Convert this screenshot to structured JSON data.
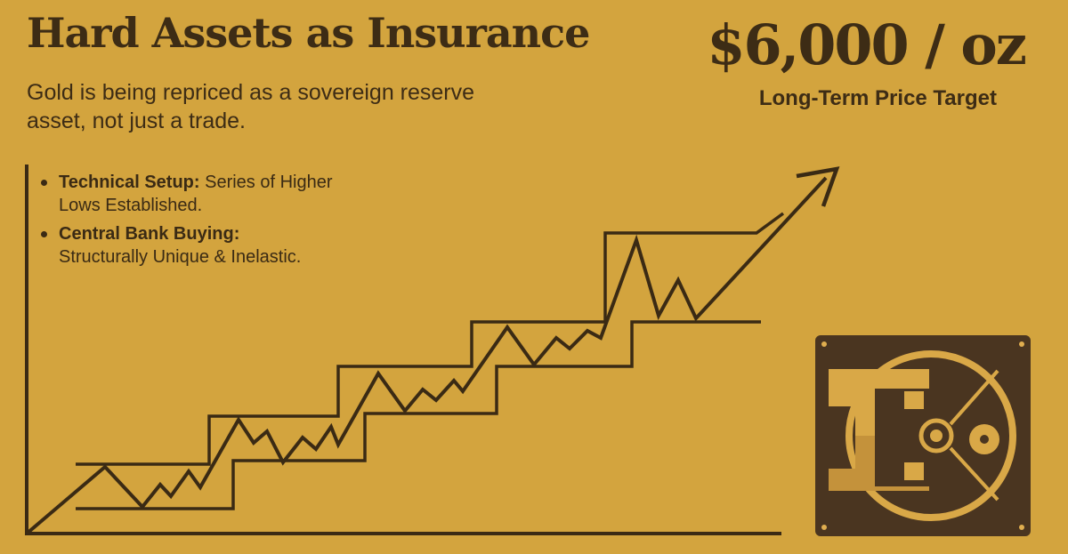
{
  "header": {
    "title": "Hard Assets as Insurance",
    "subtitle": "Gold is being repriced as a sovereign reserve asset, not just a trade."
  },
  "target": {
    "price": "$6,000 / oz",
    "label": "Long-Term Price Target"
  },
  "bullets": [
    {
      "heading": "Technical Setup:",
      "text": "Series of Higher Lows Established."
    },
    {
      "heading": "Central Bank Buying:",
      "text": "Structurally Unique & Inelastic."
    }
  ],
  "colors": {
    "background": "#d3a43e",
    "ink": "#3a2a14",
    "vault_dark": "#4a3520",
    "vault_gold": "#d9a847"
  },
  "icons": {
    "vault": "bank-vault-icon",
    "arrow": "trend-up-arrow-icon"
  }
}
